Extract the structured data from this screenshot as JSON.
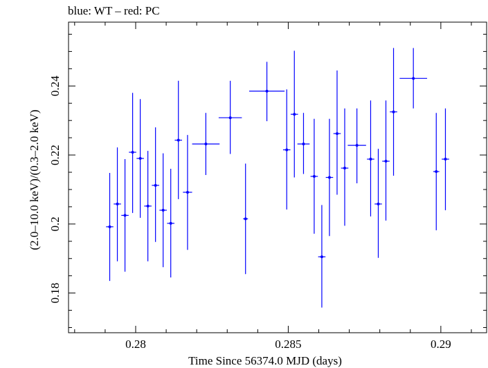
{
  "chart_data": {
    "type": "scatter",
    "title": "blue: WT – red: PC",
    "xlabel": "Time Since 56374.0 MJD (days)",
    "ylabel": "(2.0–10.0 keV)/(0.3–2.0 keV)",
    "xlim": [
      0.2778,
      0.2915
    ],
    "ylim": [
      0.1685,
      0.2585
    ],
    "x_ticks": [
      0.28,
      0.285,
      0.29
    ],
    "x_tick_labels": [
      "0.28",
      "0.285",
      "0.29"
    ],
    "y_ticks": [
      0.18,
      0.2,
      0.22,
      0.24
    ],
    "y_tick_labels": [
      "0.18",
      "0.2",
      "0.22",
      "0.24"
    ],
    "grid": false,
    "series": [
      {
        "color": "#0000ff",
        "points": [
          {
            "x": 0.27915,
            "xerr": 0.00012,
            "y": 0.1992,
            "ylo": 0.1835,
            "yhi": 0.2148
          },
          {
            "x": 0.2794,
            "xerr": 0.00012,
            "y": 0.2058,
            "ylo": 0.1892,
            "yhi": 0.2222
          },
          {
            "x": 0.27965,
            "xerr": 0.00012,
            "y": 0.2025,
            "ylo": 0.1862,
            "yhi": 0.2188
          },
          {
            "x": 0.2799,
            "xerr": 0.00012,
            "y": 0.2208,
            "ylo": 0.2032,
            "yhi": 0.238
          },
          {
            "x": 0.28015,
            "xerr": 0.00012,
            "y": 0.219,
            "ylo": 0.2018,
            "yhi": 0.2362
          },
          {
            "x": 0.2804,
            "xerr": 0.00012,
            "y": 0.2052,
            "ylo": 0.1892,
            "yhi": 0.2212
          },
          {
            "x": 0.28065,
            "xerr": 0.00012,
            "y": 0.2112,
            "ylo": 0.1948,
            "yhi": 0.228
          },
          {
            "x": 0.2809,
            "xerr": 0.00012,
            "y": 0.204,
            "ylo": 0.1875,
            "yhi": 0.2205
          },
          {
            "x": 0.28115,
            "xerr": 0.00012,
            "y": 0.2002,
            "ylo": 0.1845,
            "yhi": 0.216
          },
          {
            "x": 0.2814,
            "xerr": 0.00012,
            "y": 0.2243,
            "ylo": 0.2072,
            "yhi": 0.2415
          },
          {
            "x": 0.2817,
            "xerr": 0.00015,
            "y": 0.2092,
            "ylo": 0.1925,
            "yhi": 0.2258
          },
          {
            "x": 0.2823,
            "xerr": 0.00045,
            "y": 0.2232,
            "ylo": 0.2142,
            "yhi": 0.2322
          },
          {
            "x": 0.2831,
            "xerr": 0.00038,
            "y": 0.2308,
            "ylo": 0.2203,
            "yhi": 0.2415
          },
          {
            "x": 0.2836,
            "xerr": 8e-05,
            "y": 0.2015,
            "ylo": 0.1855,
            "yhi": 0.2175
          },
          {
            "x": 0.2843,
            "xerr": 0.00058,
            "y": 0.2385,
            "ylo": 0.2298,
            "yhi": 0.247
          },
          {
            "x": 0.28495,
            "xerr": 0.00012,
            "y": 0.2215,
            "ylo": 0.2042,
            "yhi": 0.239
          },
          {
            "x": 0.2852,
            "xerr": 0.00012,
            "y": 0.2318,
            "ylo": 0.2135,
            "yhi": 0.2502
          },
          {
            "x": 0.2855,
            "xerr": 0.0002,
            "y": 0.2232,
            "ylo": 0.2145,
            "yhi": 0.2322
          },
          {
            "x": 0.28585,
            "xerr": 0.00012,
            "y": 0.2138,
            "ylo": 0.1972,
            "yhi": 0.2305
          },
          {
            "x": 0.2861,
            "xerr": 0.00012,
            "y": 0.1905,
            "ylo": 0.1758,
            "yhi": 0.2055
          },
          {
            "x": 0.28635,
            "xerr": 0.00012,
            "y": 0.2135,
            "ylo": 0.1965,
            "yhi": 0.2305
          },
          {
            "x": 0.2866,
            "xerr": 0.00012,
            "y": 0.2262,
            "ylo": 0.2085,
            "yhi": 0.2445
          },
          {
            "x": 0.28685,
            "xerr": 0.00012,
            "y": 0.2162,
            "ylo": 0.1995,
            "yhi": 0.2335
          },
          {
            "x": 0.28725,
            "xerr": 0.0003,
            "y": 0.2228,
            "ylo": 0.2118,
            "yhi": 0.2335
          },
          {
            "x": 0.2877,
            "xerr": 0.00012,
            "y": 0.2188,
            "ylo": 0.2022,
            "yhi": 0.2358
          },
          {
            "x": 0.28795,
            "xerr": 0.00012,
            "y": 0.2058,
            "ylo": 0.1902,
            "yhi": 0.2218
          },
          {
            "x": 0.2882,
            "xerr": 0.00012,
            "y": 0.2182,
            "ylo": 0.201,
            "yhi": 0.2358
          },
          {
            "x": 0.28845,
            "xerr": 0.00012,
            "y": 0.2325,
            "ylo": 0.214,
            "yhi": 0.251
          },
          {
            "x": 0.2891,
            "xerr": 0.00045,
            "y": 0.2422,
            "ylo": 0.2335,
            "yhi": 0.251
          },
          {
            "x": 0.28985,
            "xerr": 0.0001,
            "y": 0.2152,
            "ylo": 0.1982,
            "yhi": 0.2322
          },
          {
            "x": 0.29015,
            "xerr": 0.00012,
            "y": 0.2188,
            "ylo": 0.204,
            "yhi": 0.2335
          }
        ]
      }
    ]
  }
}
